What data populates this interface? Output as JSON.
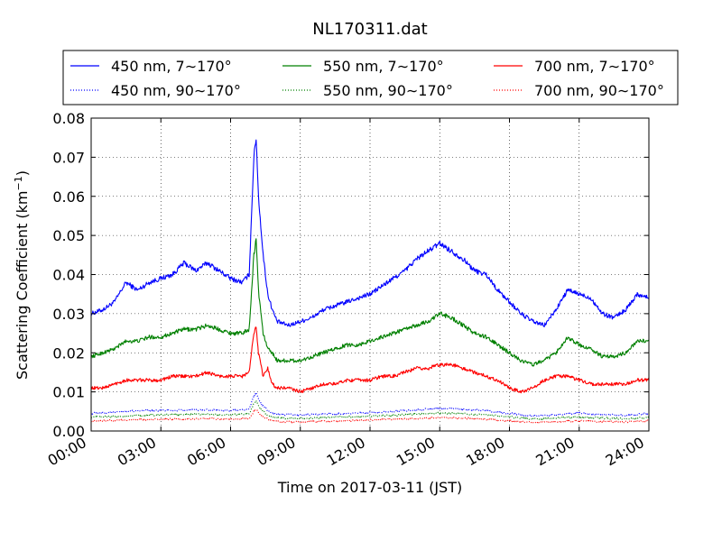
{
  "chart_data": {
    "type": "line",
    "title": "NL170311.dat",
    "xlabel": "Time on 2017-03-11 (JST)",
    "ylabel": "Scattering Coefficient (km",
    "ylabel_sup": "−1",
    "ylabel_close": ")",
    "xlim_hours": [
      0,
      24
    ],
    "ylim": [
      0,
      0.08
    ],
    "grid": true,
    "legend_position": "top",
    "x_ticks": [
      {
        "hour": 0,
        "label": "00:00"
      },
      {
        "hour": 3,
        "label": "03:00"
      },
      {
        "hour": 6,
        "label": "06:00"
      },
      {
        "hour": 9,
        "label": "09:00"
      },
      {
        "hour": 12,
        "label": "12:00"
      },
      {
        "hour": 15,
        "label": "15:00"
      },
      {
        "hour": 18,
        "label": "18:00"
      },
      {
        "hour": 21,
        "label": "21:00"
      },
      {
        "hour": 24,
        "label": "24:00"
      }
    ],
    "y_ticks": [
      {
        "value": 0.0,
        "label": "0.00"
      },
      {
        "value": 0.01,
        "label": "0.01"
      },
      {
        "value": 0.02,
        "label": "0.02"
      },
      {
        "value": 0.03,
        "label": "0.03"
      },
      {
        "value": 0.04,
        "label": "0.04"
      },
      {
        "value": 0.05,
        "label": "0.05"
      },
      {
        "value": 0.06,
        "label": "0.06"
      },
      {
        "value": 0.07,
        "label": "0.07"
      },
      {
        "value": 0.08,
        "label": "0.08"
      }
    ],
    "series": [
      {
        "name": "450 nm, 7∼170°",
        "color": "#0000ff",
        "style": "solid",
        "x": [
          0,
          0.5,
          1,
          1.5,
          2,
          2.5,
          3,
          3.5,
          4,
          4.5,
          5,
          5.5,
          6,
          6.5,
          6.8,
          7,
          7.1,
          7.2,
          7.4,
          7.6,
          7.8,
          8,
          8.5,
          9,
          9.5,
          10,
          10.5,
          11,
          11.5,
          12,
          12.5,
          13,
          13.5,
          14,
          14.5,
          15,
          15.5,
          16,
          16.5,
          17,
          17.5,
          18,
          18.5,
          19,
          19.5,
          20,
          20.5,
          21,
          21.5,
          22,
          22.5,
          23,
          23.5,
          24
        ],
        "y": [
          0.03,
          0.031,
          0.033,
          0.038,
          0.036,
          0.038,
          0.039,
          0.04,
          0.043,
          0.041,
          0.043,
          0.041,
          0.039,
          0.038,
          0.04,
          0.07,
          0.075,
          0.06,
          0.045,
          0.035,
          0.031,
          0.028,
          0.027,
          0.028,
          0.029,
          0.031,
          0.032,
          0.033,
          0.034,
          0.035,
          0.037,
          0.039,
          0.041,
          0.044,
          0.046,
          0.048,
          0.046,
          0.044,
          0.041,
          0.04,
          0.036,
          0.033,
          0.03,
          0.028,
          0.027,
          0.031,
          0.036,
          0.035,
          0.034,
          0.03,
          0.029,
          0.031,
          0.035,
          0.034
        ]
      },
      {
        "name": "550 nm, 7∼170°",
        "color": "#008000",
        "style": "solid",
        "x": [
          0,
          0.5,
          1,
          1.5,
          2,
          2.5,
          3,
          3.5,
          4,
          4.5,
          5,
          5.5,
          6,
          6.5,
          6.8,
          7,
          7.1,
          7.2,
          7.4,
          7.6,
          7.8,
          8,
          8.5,
          9,
          9.5,
          10,
          10.5,
          11,
          11.5,
          12,
          12.5,
          13,
          13.5,
          14,
          14.5,
          15,
          15.5,
          16,
          16.5,
          17,
          17.5,
          18,
          18.5,
          19,
          19.5,
          20,
          20.5,
          21,
          21.5,
          22,
          22.5,
          23,
          23.5,
          24
        ],
        "y": [
          0.019,
          0.02,
          0.021,
          0.023,
          0.023,
          0.024,
          0.024,
          0.025,
          0.026,
          0.026,
          0.027,
          0.026,
          0.025,
          0.025,
          0.026,
          0.045,
          0.049,
          0.036,
          0.025,
          0.021,
          0.02,
          0.018,
          0.018,
          0.018,
          0.019,
          0.02,
          0.021,
          0.022,
          0.022,
          0.023,
          0.024,
          0.025,
          0.026,
          0.027,
          0.028,
          0.03,
          0.029,
          0.027,
          0.025,
          0.024,
          0.022,
          0.02,
          0.018,
          0.017,
          0.018,
          0.02,
          0.024,
          0.022,
          0.021,
          0.019,
          0.019,
          0.02,
          0.023,
          0.023
        ]
      },
      {
        "name": "700 nm, 7∼170°",
        "color": "#ff0000",
        "style": "solid",
        "x": [
          0,
          0.5,
          1,
          1.5,
          2,
          2.5,
          3,
          3.5,
          4,
          4.5,
          5,
          5.5,
          6,
          6.5,
          6.8,
          7,
          7.1,
          7.2,
          7.4,
          7.6,
          7.8,
          8,
          8.5,
          9,
          9.5,
          10,
          10.5,
          11,
          11.5,
          12,
          12.5,
          13,
          13.5,
          14,
          14.5,
          15,
          15.5,
          16,
          16.5,
          17,
          17.5,
          18,
          18.5,
          19,
          19.5,
          20,
          20.5,
          21,
          21.5,
          22,
          22.5,
          23,
          23.5,
          24
        ],
        "y": [
          0.011,
          0.011,
          0.012,
          0.013,
          0.013,
          0.013,
          0.013,
          0.014,
          0.014,
          0.014,
          0.015,
          0.014,
          0.014,
          0.014,
          0.015,
          0.025,
          0.027,
          0.02,
          0.014,
          0.016,
          0.012,
          0.011,
          0.011,
          0.01,
          0.011,
          0.012,
          0.012,
          0.013,
          0.013,
          0.013,
          0.014,
          0.014,
          0.015,
          0.016,
          0.016,
          0.017,
          0.017,
          0.016,
          0.015,
          0.014,
          0.013,
          0.011,
          0.01,
          0.011,
          0.013,
          0.014,
          0.014,
          0.013,
          0.012,
          0.012,
          0.012,
          0.012,
          0.013,
          0.013
        ]
      },
      {
        "name": "450 nm, 90∼170°",
        "color": "#0000ff",
        "style": "dotted",
        "x": [
          0,
          1,
          2,
          3,
          4,
          5,
          6,
          6.8,
          7,
          7.1,
          7.3,
          7.6,
          8,
          9,
          10,
          11,
          12,
          13,
          14,
          15,
          16,
          17,
          18,
          19,
          20,
          21,
          22,
          23,
          24
        ],
        "y": [
          0.0045,
          0.0048,
          0.0052,
          0.0052,
          0.0053,
          0.0054,
          0.0052,
          0.0056,
          0.009,
          0.0098,
          0.007,
          0.0052,
          0.0042,
          0.0041,
          0.0043,
          0.0045,
          0.0047,
          0.005,
          0.0054,
          0.0058,
          0.0056,
          0.0052,
          0.0045,
          0.0038,
          0.0042,
          0.0046,
          0.0042,
          0.004,
          0.0045
        ]
      },
      {
        "name": "550 nm, 90∼170°",
        "color": "#008000",
        "style": "dotted",
        "x": [
          0,
          1,
          2,
          3,
          4,
          5,
          6,
          6.8,
          7,
          7.1,
          7.3,
          7.6,
          8,
          9,
          10,
          11,
          12,
          13,
          14,
          15,
          16,
          17,
          18,
          19,
          20,
          21,
          22,
          23,
          24
        ],
        "y": [
          0.0035,
          0.0037,
          0.004,
          0.0041,
          0.0042,
          0.0043,
          0.0041,
          0.0044,
          0.007,
          0.0076,
          0.0055,
          0.0041,
          0.0033,
          0.0032,
          0.0034,
          0.0036,
          0.0038,
          0.004,
          0.0043,
          0.0046,
          0.0044,
          0.0041,
          0.0036,
          0.003,
          0.0033,
          0.0036,
          0.0033,
          0.0031,
          0.0035
        ]
      },
      {
        "name": "700 nm, 90∼170°",
        "color": "#ff0000",
        "style": "dotted",
        "x": [
          0,
          1,
          2,
          3,
          4,
          5,
          6,
          6.8,
          7,
          7.1,
          7.3,
          7.6,
          8,
          9,
          10,
          11,
          12,
          13,
          14,
          15,
          16,
          17,
          18,
          19,
          20,
          21,
          22,
          23,
          24
        ],
        "y": [
          0.0025,
          0.0027,
          0.0029,
          0.003,
          0.0031,
          0.0032,
          0.003,
          0.0032,
          0.005,
          0.0054,
          0.004,
          0.003,
          0.0024,
          0.0023,
          0.0025,
          0.0026,
          0.0028,
          0.003,
          0.0032,
          0.0034,
          0.0033,
          0.003,
          0.0026,
          0.0022,
          0.0024,
          0.0026,
          0.0024,
          0.0023,
          0.0026
        ]
      }
    ]
  }
}
